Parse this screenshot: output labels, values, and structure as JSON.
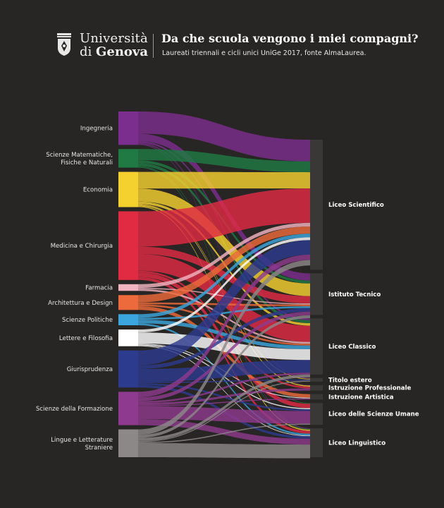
{
  "header": {
    "logo_line1": "Università",
    "logo_line2_prefix": "di",
    "logo_line2_bold": "Genova",
    "title": "Da che scuola vengono i miei compagni?",
    "subtitle": "Laureati triennali e cicli unici UniGe 2017, fonte AlmaLaurea."
  },
  "chart_data": {
    "type": "sankey",
    "title": "Da che scuola vengono i miei compagni?",
    "subtitle": "Laureati triennali e cicli unici UniGe 2017, fonte AlmaLaurea.",
    "units": "percent of all graduates (approx.)",
    "sources": [
      {
        "name": "Ingegneria",
        "label": [
          "Ingegneria"
        ],
        "color": "#7b2e8e",
        "value": 9.0
      },
      {
        "name": "Scienze Matematiche, Fisiche e Naturali",
        "label": [
          "Scienze Matematiche,",
          "Fisiche e Naturali"
        ],
        "color": "#1f7a43",
        "value": 5.0
      },
      {
        "name": "Economia",
        "label": [
          "Economia"
        ],
        "color": "#f5d130",
        "value": 9.5
      },
      {
        "name": "Medicina e Chirurgia",
        "label": [
          "Medicina e Chirurgia"
        ],
        "color": "#e02b43",
        "value": 18.5
      },
      {
        "name": "Farmacia",
        "label": [
          "Farmacia"
        ],
        "color": "#f2b3c0",
        "value": 1.8
      },
      {
        "name": "Architettura e Design",
        "label": [
          "Architettura e Design"
        ],
        "color": "#ec6a3b",
        "value": 4.0
      },
      {
        "name": "Scienze Politiche",
        "label": [
          "Scienze Politiche"
        ],
        "color": "#3aa6dd",
        "value": 3.0
      },
      {
        "name": "Lettere e Filosofia",
        "label": [
          "Lettere e Filosofia"
        ],
        "color": "#ffffff",
        "value": 4.5
      },
      {
        "name": "Giurisprudenza",
        "label": [
          "Giurisprudenza"
        ],
        "color": "#2d3b8f",
        "value": 10.0
      },
      {
        "name": "Scienze della Formazione",
        "label": [
          "Scienze della Formazione"
        ],
        "color": "#8e3a8e",
        "value": 9.0
      },
      {
        "name": "Lingue e Letterature Straniere",
        "label": [
          "Lingue e Letterature",
          "Straniere"
        ],
        "color": "#8c8888",
        "value": 7.5
      }
    ],
    "targets": [
      {
        "name": "Liceo Scientifico",
        "value": 36.0
      },
      {
        "name": "Istituto Tecnico",
        "value": 11.5
      },
      {
        "name": "Liceo Classico",
        "value": 15.5
      },
      {
        "name": "Titolo estero",
        "value": 1.0
      },
      {
        "name": "Istruzione Professionale",
        "value": 1.5
      },
      {
        "name": "Istruzione Artistica",
        "value": 1.5
      },
      {
        "name": "Liceo delle Scienze Umane",
        "value": 6.0
      },
      {
        "name": "Liceo Linguistico",
        "value": 8.0
      }
    ],
    "flows": [
      {
        "source": "Ingegneria",
        "target": "Liceo Scientifico",
        "value": 6.0
      },
      {
        "source": "Ingegneria",
        "target": "Istituto Tecnico",
        "value": 2.0
      },
      {
        "source": "Ingegneria",
        "target": "Liceo Classico",
        "value": 0.5
      },
      {
        "source": "Ingegneria",
        "target": "Titolo estero",
        "value": 0.2
      },
      {
        "source": "Ingegneria",
        "target": "Istruzione Professionale",
        "value": 0.1
      },
      {
        "source": "Ingegneria",
        "target": "Liceo Linguistico",
        "value": 0.2
      },
      {
        "source": "Scienze Matematiche, Fisiche e Naturali",
        "target": "Liceo Scientifico",
        "value": 3.0
      },
      {
        "source": "Scienze Matematiche, Fisiche e Naturali",
        "target": "Istituto Tecnico",
        "value": 0.8
      },
      {
        "source": "Scienze Matematiche, Fisiche e Naturali",
        "target": "Liceo Classico",
        "value": 0.8
      },
      {
        "source": "Scienze Matematiche, Fisiche e Naturali",
        "target": "Liceo delle Scienze Umane",
        "value": 0.2
      },
      {
        "source": "Scienze Matematiche, Fisiche e Naturali",
        "target": "Liceo Linguistico",
        "value": 0.2
      },
      {
        "source": "Economia",
        "target": "Liceo Scientifico",
        "value": 4.5
      },
      {
        "source": "Economia",
        "target": "Istituto Tecnico",
        "value": 3.5
      },
      {
        "source": "Economia",
        "target": "Liceo Classico",
        "value": 0.7
      },
      {
        "source": "Economia",
        "target": "Titolo estero",
        "value": 0.2
      },
      {
        "source": "Economia",
        "target": "Istruzione Professionale",
        "value": 0.3
      },
      {
        "source": "Economia",
        "target": "Liceo Linguistico",
        "value": 0.3
      },
      {
        "source": "Medicina e Chirurgia",
        "target": "Liceo Scientifico",
        "value": 9.5
      },
      {
        "source": "Medicina e Chirurgia",
        "target": "Istituto Tecnico",
        "value": 2.0
      },
      {
        "source": "Medicina e Chirurgia",
        "target": "Liceo Classico",
        "value": 4.5
      },
      {
        "source": "Medicina e Chirurgia",
        "target": "Istruzione Professionale",
        "value": 0.5
      },
      {
        "source": "Medicina e Chirurgia",
        "target": "Liceo delle Scienze Umane",
        "value": 1.2
      },
      {
        "source": "Medicina e Chirurgia",
        "target": "Liceo Linguistico",
        "value": 0.8
      },
      {
        "source": "Farmacia",
        "target": "Liceo Scientifico",
        "value": 1.0
      },
      {
        "source": "Farmacia",
        "target": "Istituto Tecnico",
        "value": 0.3
      },
      {
        "source": "Farmacia",
        "target": "Liceo Classico",
        "value": 0.5
      },
      {
        "source": "Architettura e Design",
        "target": "Liceo Scientifico",
        "value": 2.0
      },
      {
        "source": "Architettura e Design",
        "target": "Istituto Tecnico",
        "value": 0.5
      },
      {
        "source": "Architettura e Design",
        "target": "Liceo Classico",
        "value": 0.5
      },
      {
        "source": "Architettura e Design",
        "target": "Istruzione Artistica",
        "value": 1.0
      },
      {
        "source": "Scienze Politiche",
        "target": "Liceo Scientifico",
        "value": 1.0
      },
      {
        "source": "Scienze Politiche",
        "target": "Istituto Tecnico",
        "value": 0.5
      },
      {
        "source": "Scienze Politiche",
        "target": "Liceo Classico",
        "value": 1.0
      },
      {
        "source": "Scienze Politiche",
        "target": "Liceo Linguistico",
        "value": 0.5
      },
      {
        "source": "Lettere e Filosofia",
        "target": "Liceo Scientifico",
        "value": 0.8
      },
      {
        "source": "Lettere e Filosofia",
        "target": "Liceo Classico",
        "value": 3.0
      },
      {
        "source": "Lettere e Filosofia",
        "target": "Istruzione Artistica",
        "value": 0.2
      },
      {
        "source": "Lettere e Filosofia",
        "target": "Liceo delle Scienze Umane",
        "value": 0.3
      },
      {
        "source": "Lettere e Filosofia",
        "target": "Liceo Linguistico",
        "value": 0.2
      },
      {
        "source": "Giurisprudenza",
        "target": "Liceo Scientifico",
        "value": 4.0
      },
      {
        "source": "Giurisprudenza",
        "target": "Istituto Tecnico",
        "value": 1.0
      },
      {
        "source": "Giurisprudenza",
        "target": "Liceo Classico",
        "value": 3.5
      },
      {
        "source": "Giurisprudenza",
        "target": "Titolo estero",
        "value": 0.3
      },
      {
        "source": "Giurisprudenza",
        "target": "Liceo delle Scienze Umane",
        "value": 0.5
      },
      {
        "source": "Giurisprudenza",
        "target": "Liceo Linguistico",
        "value": 0.7
      },
      {
        "source": "Scienze della Formazione",
        "target": "Liceo Scientifico",
        "value": 1.5
      },
      {
        "source": "Scienze della Formazione",
        "target": "Istituto Tecnico",
        "value": 1.0
      },
      {
        "source": "Scienze della Formazione",
        "target": "Liceo Classico",
        "value": 0.5
      },
      {
        "source": "Scienze della Formazione",
        "target": "Istruzione Professionale",
        "value": 0.6
      },
      {
        "source": "Scienze della Formazione",
        "target": "Istruzione Artistica",
        "value": 0.3
      },
      {
        "source": "Scienze della Formazione",
        "target": "Liceo delle Scienze Umane",
        "value": 3.5
      },
      {
        "source": "Scienze della Formazione",
        "target": "Liceo Linguistico",
        "value": 1.6
      },
      {
        "source": "Lingue e Letterature Straniere",
        "target": "Liceo Scientifico",
        "value": 1.5
      },
      {
        "source": "Lingue e Letterature Straniere",
        "target": "Istituto Tecnico",
        "value": 0.8
      },
      {
        "source": "Lingue e Letterature Straniere",
        "target": "Liceo Classico",
        "value": 0.8
      },
      {
        "source": "Lingue e Letterature Straniere",
        "target": "Titolo estero",
        "value": 0.3
      },
      {
        "source": "Lingue e Letterature Straniere",
        "target": "Liceo delle Scienze Umane",
        "value": 0.3
      },
      {
        "source": "Lingue e Letterature Straniere",
        "target": "Liceo Linguistico",
        "value": 3.8
      }
    ]
  }
}
